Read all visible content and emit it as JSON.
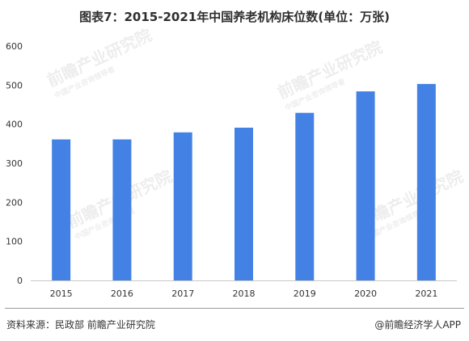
{
  "title": "图表7：2015-2021年中国养老机构床位数(单位：万张)",
  "source": "资料来源：民政部 前瞻产业研究院",
  "brand": "@前瞻经济学人APP",
  "watermark": {
    "main": "前瞻产业研究院",
    "sub": "中国产业咨询领导者"
  },
  "colors": {
    "bar": "#4382e4",
    "axis": "#c8c8c8",
    "text": "#333333"
  },
  "chart_data": {
    "type": "bar",
    "title": "图表7：2015-2021年中国养老机构床位数(单位：万张)",
    "xlabel": "",
    "ylabel": "",
    "categories": [
      "2015",
      "2016",
      "2017",
      "2018",
      "2019",
      "2020",
      "2021"
    ],
    "values": [
      361,
      361,
      379,
      391,
      429,
      484,
      503
    ],
    "ylim": [
      0,
      600
    ],
    "yticks": [
      0,
      100,
      200,
      300,
      400,
      500,
      600
    ],
    "grid": false,
    "legend": "none"
  }
}
